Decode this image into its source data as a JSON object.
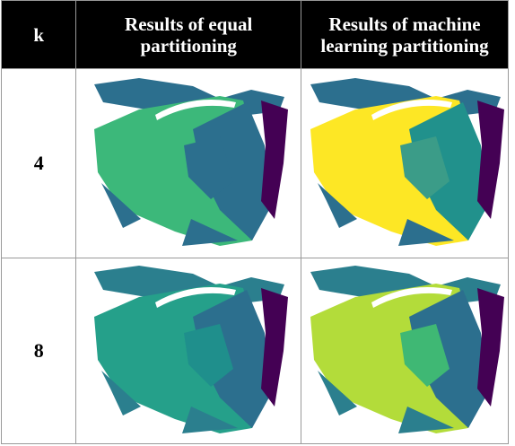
{
  "header": [
    "k",
    [
      "Results of equal",
      "partitioning"
    ],
    [
      "Results of machine",
      "learning partitioning"
    ]
  ],
  "rows": [
    "4",
    "8"
  ]
}
